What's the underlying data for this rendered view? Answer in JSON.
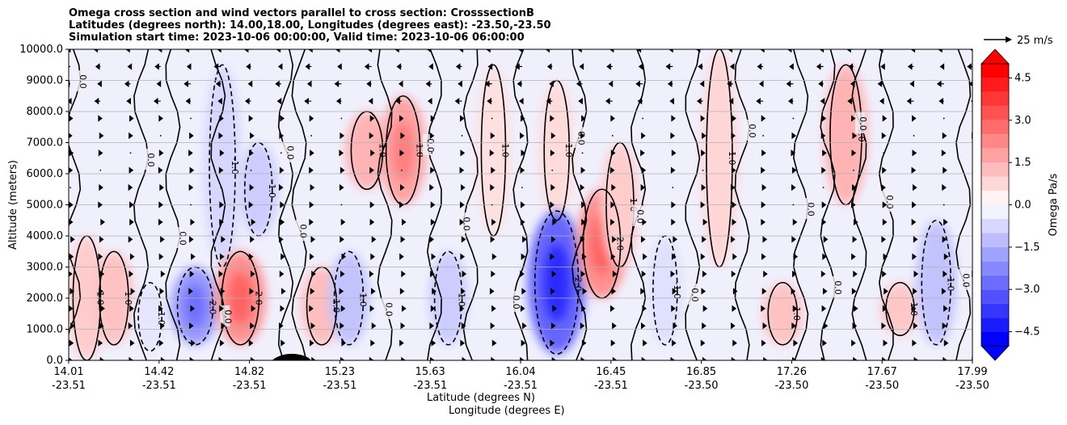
{
  "chart_data": {
    "type": "heatmap",
    "title": [
      "Omega cross section and wind vectors parallel to cross section: CrosssectionB",
      "Latitudes (degrees north): 14.00,18.00, Longitudes (degrees east): -23.50,-23.50",
      "Simulation start time: 2023-10-06 00:00:00, Valid time: 2023-10-06 06:00:00"
    ],
    "xlabel": "Latitude (degrees N)",
    "xlabel2": "Longitude (degrees E)",
    "ylabel": "Altitude (meters)",
    "ylim": [
      0,
      10000
    ],
    "yticks": [
      "0.0",
      "1000.0",
      "2000.0",
      "3000.0",
      "4000.0",
      "5000.0",
      "6000.0",
      "7000.0",
      "8000.0",
      "9000.0",
      "10000.0"
    ],
    "xticks_lat": [
      "14.01",
      "14.42",
      "14.82",
      "15.23",
      "15.63",
      "16.04",
      "16.45",
      "16.85",
      "17.26",
      "17.67",
      "17.99"
    ],
    "xticks_lon": [
      "-23.51",
      "-23.51",
      "-23.51",
      "-23.51",
      "-23.51",
      "-23.51",
      "-23.51",
      "-23.50",
      "-23.50",
      "-23.50",
      "-23.50"
    ],
    "grid": "horizontal",
    "colorbar": {
      "label": "Omega Pa/s",
      "ticks": [
        "4.5",
        "3.0",
        "1.5",
        "0.0",
        "−1.5",
        "−3.0",
        "−4.5"
      ],
      "range": [
        -5,
        5
      ],
      "extend": "both",
      "pos_color": "#ff0000",
      "neg_color": "#0000ff"
    },
    "vector_key": {
      "label": "25 m/s"
    },
    "contour_labels": [
      "0.0",
      "1.0",
      "2.0",
      "-1.0",
      "-2.0"
    ],
    "cells": [
      {
        "x": 0.02,
        "alt": [
          0,
          4000
        ],
        "v": 1.0
      },
      {
        "x": 0.05,
        "alt": [
          500,
          3500
        ],
        "v": 1.2
      },
      {
        "x": 0.09,
        "alt": [
          300,
          2500
        ],
        "v": -0.5
      },
      {
        "x": 0.14,
        "alt": [
          500,
          3000
        ],
        "v": -2.0
      },
      {
        "x": 0.17,
        "alt": [
          3000,
          9500
        ],
        "v": -0.8
      },
      {
        "x": 0.19,
        "alt": [
          500,
          3500
        ],
        "v": 2.2
      },
      {
        "x": 0.21,
        "alt": [
          4000,
          7000
        ],
        "v": -1.0
      },
      {
        "x": 0.28,
        "alt": [
          500,
          3000
        ],
        "v": 1.3
      },
      {
        "x": 0.31,
        "alt": [
          500,
          3500
        ],
        "v": -1.2
      },
      {
        "x": 0.33,
        "alt": [
          5500,
          8000
        ],
        "v": 1.5
      },
      {
        "x": 0.37,
        "alt": [
          5000,
          8500
        ],
        "v": 1.8
      },
      {
        "x": 0.42,
        "alt": [
          500,
          3500
        ],
        "v": -1.0
      },
      {
        "x": 0.47,
        "alt": [
          4000,
          9500
        ],
        "v": 0.6
      },
      {
        "x": 0.54,
        "alt": [
          4500,
          9000
        ],
        "v": 0.7
      },
      {
        "x": 0.54,
        "alt": [
          200,
          4800
        ],
        "v": -3.0
      },
      {
        "x": 0.59,
        "alt": [
          2000,
          5500
        ],
        "v": 2.2
      },
      {
        "x": 0.61,
        "alt": [
          3000,
          7000
        ],
        "v": 1.0
      },
      {
        "x": 0.66,
        "alt": [
          500,
          4000
        ],
        "v": -0.6
      },
      {
        "x": 0.72,
        "alt": [
          3000,
          10000
        ],
        "v": 0.8
      },
      {
        "x": 0.79,
        "alt": [
          500,
          2500
        ],
        "v": 1.2
      },
      {
        "x": 0.86,
        "alt": [
          5000,
          9500
        ],
        "v": 1.5
      },
      {
        "x": 0.92,
        "alt": [
          800,
          2500
        ],
        "v": 1.1
      },
      {
        "x": 0.96,
        "alt": [
          500,
          4500
        ],
        "v": -1.2
      }
    ]
  }
}
